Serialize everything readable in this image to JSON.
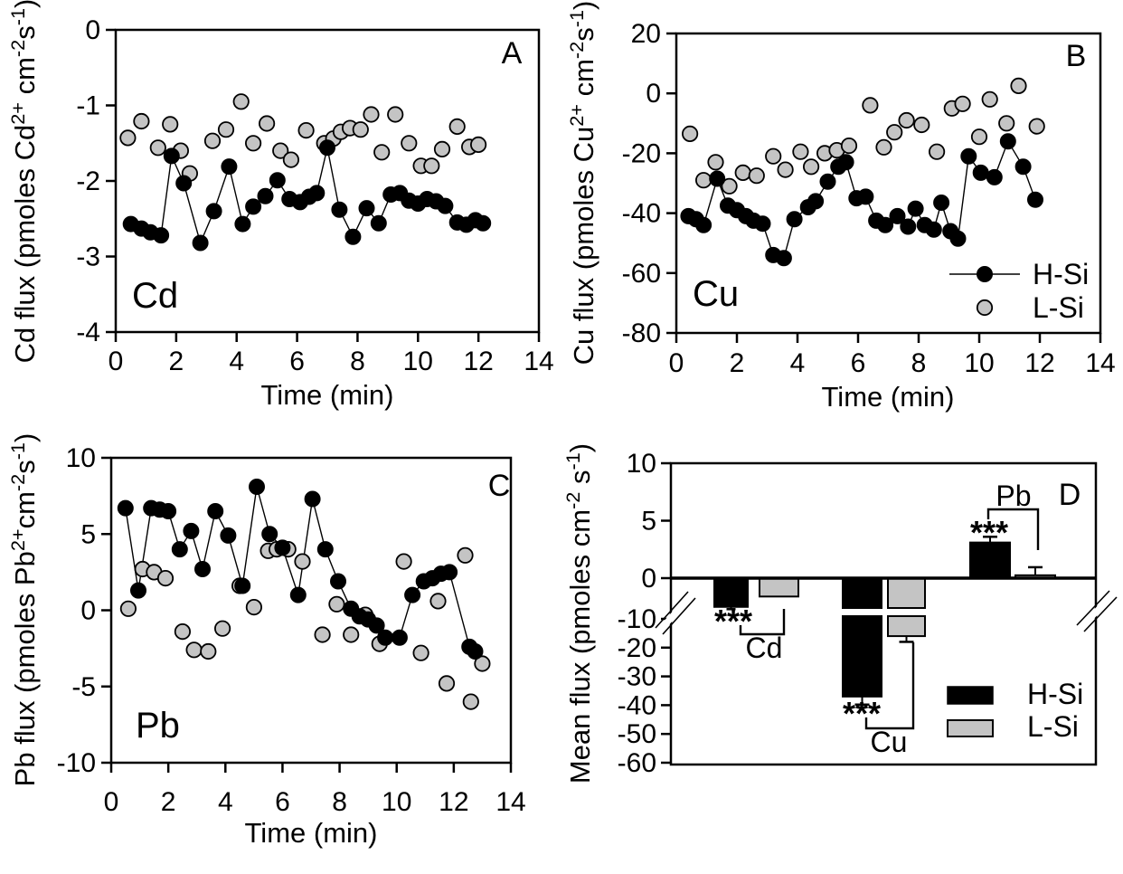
{
  "figure": {
    "background": "#ffffff",
    "series_colors": {
      "H-Si": "#000000",
      "L-Si": "#c4c4c4"
    },
    "marker_outline": "#000000"
  },
  "chart_data": [
    {
      "id": "A",
      "type": "scatter",
      "panel_label": "A",
      "corner_label": "Cd",
      "xlabel": "Time (min)",
      "ylabel_segments": [
        {
          "t": "Cd flux (pmoles Cd"
        },
        {
          "t": "2+",
          "sup": true
        },
        {
          "t": " cm"
        },
        {
          "t": "-2",
          "sup": true
        },
        {
          "t": "s"
        },
        {
          "t": "-1",
          "sup": true
        },
        {
          "t": ")"
        }
      ],
      "xlim": [
        0,
        14
      ],
      "ylim": [
        -4,
        0
      ],
      "xticks": [
        0,
        2,
        4,
        6,
        8,
        10,
        12,
        14
      ],
      "yticks": [
        0,
        -1,
        -2,
        -3,
        -4
      ],
      "series": [
        {
          "name": "H-Si",
          "color": "#000000",
          "line": true,
          "points": [
            [
              0.5,
              -2.57
            ],
            [
              0.85,
              -2.63
            ],
            [
              1.15,
              -2.68
            ],
            [
              1.5,
              -2.72
            ],
            [
              1.85,
              -1.67
            ],
            [
              2.25,
              -2.03
            ],
            [
              2.8,
              -2.82
            ],
            [
              3.25,
              -2.4
            ],
            [
              3.75,
              -1.81
            ],
            [
              4.2,
              -2.57
            ],
            [
              4.55,
              -2.34
            ],
            [
              4.95,
              -2.2
            ],
            [
              5.35,
              -1.99
            ],
            [
              5.75,
              -2.24
            ],
            [
              6.1,
              -2.28
            ],
            [
              6.4,
              -2.21
            ],
            [
              6.65,
              -2.16
            ],
            [
              7.0,
              -1.56
            ],
            [
              7.4,
              -2.38
            ],
            [
              7.85,
              -2.74
            ],
            [
              8.3,
              -2.36
            ],
            [
              8.7,
              -2.56
            ],
            [
              9.1,
              -2.18
            ],
            [
              9.4,
              -2.16
            ],
            [
              9.7,
              -2.26
            ],
            [
              10.0,
              -2.3
            ],
            [
              10.3,
              -2.24
            ],
            [
              10.6,
              -2.27
            ],
            [
              10.9,
              -2.33
            ],
            [
              11.3,
              -2.55
            ],
            [
              11.6,
              -2.58
            ],
            [
              11.9,
              -2.52
            ],
            [
              12.15,
              -2.56
            ]
          ]
        },
        {
          "name": "L-Si",
          "color": "#c4c4c4",
          "line": false,
          "points": [
            [
              0.4,
              -1.43
            ],
            [
              0.85,
              -1.21
            ],
            [
              1.4,
              -1.56
            ],
            [
              1.8,
              -1.25
            ],
            [
              2.15,
              -1.6
            ],
            [
              2.45,
              -1.9
            ],
            [
              3.2,
              -1.47
            ],
            [
              3.65,
              -1.32
            ],
            [
              4.15,
              -0.95
            ],
            [
              4.55,
              -1.5
            ],
            [
              5.0,
              -1.24
            ],
            [
              5.45,
              -1.6
            ],
            [
              5.8,
              -1.72
            ],
            [
              6.3,
              -1.33
            ],
            [
              6.9,
              -1.5
            ],
            [
              7.2,
              -1.44
            ],
            [
              7.45,
              -1.35
            ],
            [
              7.75,
              -1.3
            ],
            [
              8.1,
              -1.32
            ],
            [
              8.45,
              -1.12
            ],
            [
              8.8,
              -1.62
            ],
            [
              9.25,
              -1.12
            ],
            [
              9.7,
              -1.5
            ],
            [
              10.1,
              -1.8
            ],
            [
              10.45,
              -1.8
            ],
            [
              10.8,
              -1.58
            ],
            [
              11.3,
              -1.28
            ],
            [
              11.7,
              -1.55
            ],
            [
              12.0,
              -1.52
            ]
          ]
        }
      ]
    },
    {
      "id": "B",
      "type": "scatter",
      "panel_label": "B",
      "corner_label": "Cu",
      "xlabel": "Time (min)",
      "ylabel_segments": [
        {
          "t": "Cu flux (pmoles Cu"
        },
        {
          "t": "2+",
          "sup": true
        },
        {
          "t": " cm"
        },
        {
          "t": "-2",
          "sup": true
        },
        {
          "t": "s"
        },
        {
          "t": "-1",
          "sup": true
        },
        {
          "t": ")"
        }
      ],
      "xlim": [
        0,
        14
      ],
      "ylim": [
        -80,
        20
      ],
      "xticks": [
        0,
        2,
        4,
        6,
        8,
        10,
        12,
        14
      ],
      "yticks": [
        20,
        0,
        -20,
        -40,
        -60,
        -80
      ],
      "legend": {
        "items": [
          "H-Si",
          "L-Si"
        ]
      },
      "series": [
        {
          "name": "H-Si",
          "color": "#000000",
          "line": true,
          "points": [
            [
              0.4,
              -41
            ],
            [
              0.65,
              -42
            ],
            [
              0.9,
              -44
            ],
            [
              1.35,
              -28.5
            ],
            [
              1.7,
              -37.5
            ],
            [
              2.0,
              -39
            ],
            [
              2.3,
              -41
            ],
            [
              2.55,
              -42.5
            ],
            [
              2.85,
              -43.5
            ],
            [
              3.2,
              -54
            ],
            [
              3.55,
              -55
            ],
            [
              3.9,
              -42
            ],
            [
              4.35,
              -38
            ],
            [
              4.6,
              -36
            ],
            [
              5.0,
              -29.5
            ],
            [
              5.35,
              -24.5
            ],
            [
              5.6,
              -23
            ],
            [
              5.95,
              -35
            ],
            [
              6.25,
              -34.5
            ],
            [
              6.6,
              -42.5
            ],
            [
              6.9,
              -44
            ],
            [
              7.3,
              -41
            ],
            [
              7.65,
              -44.5
            ],
            [
              7.9,
              -38.5
            ],
            [
              8.2,
              -44
            ],
            [
              8.5,
              -45.5
            ],
            [
              8.75,
              -36.5
            ],
            [
              9.05,
              -46
            ],
            [
              9.3,
              -48.5
            ],
            [
              9.65,
              -21
            ],
            [
              10.05,
              -26.5
            ],
            [
              10.5,
              -28
            ],
            [
              10.95,
              -16
            ],
            [
              11.45,
              -24.5
            ],
            [
              11.85,
              -35.5
            ]
          ]
        },
        {
          "name": "L-Si",
          "color": "#c4c4c4",
          "line": false,
          "points": [
            [
              0.45,
              -13.5
            ],
            [
              0.9,
              -29
            ],
            [
              1.3,
              -23
            ],
            [
              1.75,
              -31
            ],
            [
              2.2,
              -26.5
            ],
            [
              2.65,
              -27.5
            ],
            [
              3.2,
              -21
            ],
            [
              3.6,
              -25.5
            ],
            [
              4.1,
              -19.5
            ],
            [
              4.45,
              -24.5
            ],
            [
              4.9,
              -20
            ],
            [
              5.3,
              -19
            ],
            [
              5.7,
              -17.5
            ],
            [
              6.4,
              -4
            ],
            [
              6.85,
              -18
            ],
            [
              7.2,
              -13
            ],
            [
              7.6,
              -9
            ],
            [
              8.1,
              -10.5
            ],
            [
              8.6,
              -19.5
            ],
            [
              9.1,
              -5
            ],
            [
              9.45,
              -3.5
            ],
            [
              10.0,
              -14.5
            ],
            [
              10.35,
              -2
            ],
            [
              10.9,
              -10
            ],
            [
              11.3,
              2.5
            ],
            [
              11.9,
              -11
            ]
          ]
        }
      ]
    },
    {
      "id": "C",
      "type": "scatter",
      "panel_label": "C",
      "corner_label": "Pb",
      "xlabel": "Time (min)",
      "ylabel_segments": [
        {
          "t": "Pb flux (pmoles Pb"
        },
        {
          "t": "2+",
          "sup": true
        },
        {
          "t": "cm"
        },
        {
          "t": "-2",
          "sup": true
        },
        {
          "t": "s"
        },
        {
          "t": "-1",
          "sup": true
        },
        {
          "t": ")"
        }
      ],
      "xlim": [
        0,
        14
      ],
      "ylim": [
        -10,
        10
      ],
      "xticks": [
        0,
        2,
        4,
        6,
        8,
        10,
        12,
        14
      ],
      "yticks": [
        10,
        5,
        0,
        -5,
        -10
      ],
      "series": [
        {
          "name": "H-Si",
          "color": "#000000",
          "line": true,
          "points": [
            [
              0.5,
              6.7
            ],
            [
              0.95,
              1.3
            ],
            [
              1.4,
              6.7
            ],
            [
              1.7,
              6.6
            ],
            [
              2.0,
              6.5
            ],
            [
              2.4,
              4.0
            ],
            [
              2.8,
              5.2
            ],
            [
              3.2,
              2.7
            ],
            [
              3.65,
              6.5
            ],
            [
              4.1,
              4.9
            ],
            [
              4.6,
              1.6
            ],
            [
              5.1,
              8.1
            ],
            [
              5.55,
              5.0
            ],
            [
              6.0,
              4.1
            ],
            [
              6.55,
              1.0
            ],
            [
              7.05,
              7.3
            ],
            [
              7.5,
              4.0
            ],
            [
              7.95,
              1.9
            ],
            [
              8.4,
              0.1
            ],
            [
              8.7,
              -0.4
            ],
            [
              9.0,
              -0.6
            ],
            [
              9.3,
              -1.0
            ],
            [
              9.6,
              -1.8
            ],
            [
              10.1,
              -1.8
            ],
            [
              10.55,
              1.0
            ],
            [
              10.95,
              1.9
            ],
            [
              11.25,
              2.1
            ],
            [
              11.55,
              2.4
            ],
            [
              11.85,
              2.5
            ],
            [
              12.55,
              -2.4
            ],
            [
              12.75,
              -2.7
            ]
          ]
        },
        {
          "name": "L-Si",
          "color": "#c4c4c4",
          "line": false,
          "points": [
            [
              0.6,
              0.1
            ],
            [
              1.1,
              2.7
            ],
            [
              1.5,
              2.5
            ],
            [
              1.9,
              2.1
            ],
            [
              2.5,
              -1.4
            ],
            [
              2.9,
              -2.6
            ],
            [
              3.4,
              -2.7
            ],
            [
              3.9,
              -1.2
            ],
            [
              4.5,
              1.6
            ],
            [
              5.0,
              0.2
            ],
            [
              5.5,
              3.9
            ],
            [
              5.8,
              4.0
            ],
            [
              6.2,
              4.0
            ],
            [
              6.7,
              3.2
            ],
            [
              7.4,
              -1.6
            ],
            [
              7.9,
              0.4
            ],
            [
              8.4,
              -1.6
            ],
            [
              8.9,
              -0.3
            ],
            [
              9.4,
              -2.2
            ],
            [
              10.25,
              3.2
            ],
            [
              10.85,
              -2.8
            ],
            [
              11.45,
              0.6
            ],
            [
              11.75,
              -4.8
            ],
            [
              12.4,
              3.6
            ],
            [
              12.6,
              -6.0
            ],
            [
              13.0,
              -3.5
            ]
          ]
        }
      ]
    },
    {
      "id": "D",
      "type": "bar",
      "panel_label": "D",
      "ylabel_segments": [
        {
          "t": "Mean  flux (pmoles cm"
        },
        {
          "t": "-2",
          "sup": true
        },
        {
          "t": " s"
        },
        {
          "t": "-1",
          "sup": true
        },
        {
          "t": ")"
        }
      ],
      "axis_break": true,
      "yticks": [
        10,
        5,
        0,
        -10,
        -20,
        -30,
        -40,
        -50,
        -60
      ],
      "groups": [
        {
          "label": "Cd",
          "significance": "***",
          "bars": [
            {
              "series": "H-Si",
              "value": -2.5,
              "error": 0.2
            },
            {
              "series": "L-Si",
              "value": -1.6
            }
          ]
        },
        {
          "label": "Cu",
          "significance": "***",
          "bars": [
            {
              "series": "H-Si",
              "value": -37,
              "error": 2.8
            },
            {
              "series": "L-Si",
              "value": -16,
              "error": 2.0
            }
          ]
        },
        {
          "label": "Pb",
          "significance": "***",
          "bars": [
            {
              "series": "H-Si",
              "value": 3.1,
              "error": 0.5
            },
            {
              "series": "L-Si",
              "value": 0.25,
              "error": 0.7
            }
          ]
        }
      ],
      "legend": {
        "items": [
          {
            "label": "H-Si",
            "color": "#000000"
          },
          {
            "label": "L-Si",
            "color": "#c4c4c4"
          }
        ]
      }
    }
  ]
}
